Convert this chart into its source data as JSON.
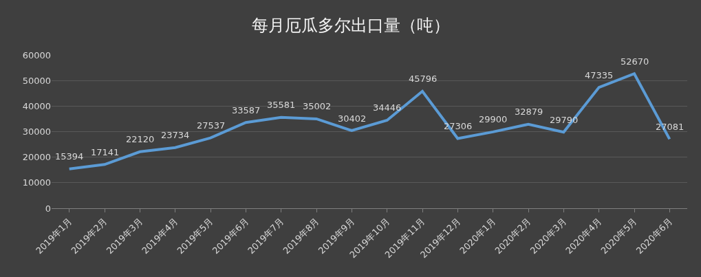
{
  "chart_data": {
    "type": "line",
    "title": "每月厄瓜多尔出口量（吨）",
    "categories": [
      "2019年1月",
      "2019年2月",
      "2019年3月",
      "2019年4月",
      "2019年5月",
      "2019年6月",
      "2019年7月",
      "2019年8月",
      "2019年9月",
      "2019年10月",
      "2019年11月",
      "2019年12月",
      "2020年1月",
      "2020年2月",
      "2020年3月",
      "2020年4月",
      "2020年5月",
      "2020年6月"
    ],
    "series": [
      {
        "color": "#5b9bd5",
        "values": [
          15394,
          17141,
          22120,
          23734,
          27537,
          33587,
          35581,
          35002,
          30402,
          34446,
          45796,
          27306,
          29900,
          32879,
          29790,
          47335,
          52670,
          27081
        ]
      }
    ],
    "ylim": [
      0,
      60000
    ],
    "yticks": [
      0,
      10000,
      20000,
      30000,
      40000,
      50000,
      60000
    ],
    "grid": "y",
    "data_labels": true,
    "marker": "none",
    "line_style": "solid"
  }
}
